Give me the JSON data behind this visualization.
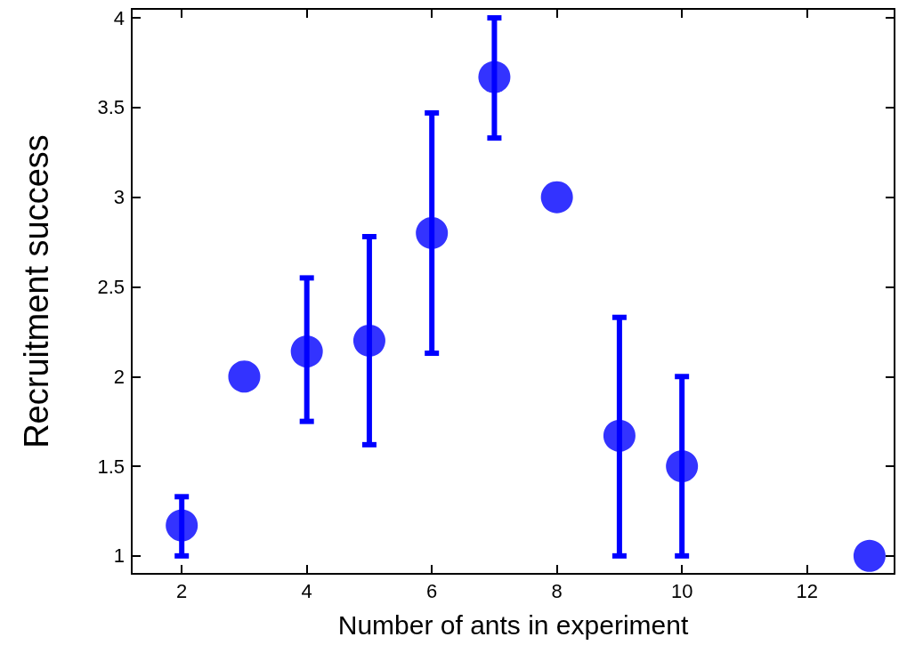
{
  "chart_data": {
    "type": "scatter",
    "xlabel": "Number of ants in experiment",
    "ylabel": "Recruitment success",
    "x": [
      2,
      3,
      4,
      5,
      6,
      7,
      8,
      9,
      10,
      13
    ],
    "values": [
      1.17,
      2.0,
      2.14,
      2.2,
      2.8,
      3.67,
      3.0,
      1.67,
      1.5,
      1.0
    ],
    "errors": [
      [
        1.0,
        1.33
      ],
      null,
      [
        1.75,
        2.55
      ],
      [
        1.62,
        2.78
      ],
      [
        2.13,
        3.47
      ],
      [
        3.33,
        4.0
      ],
      null,
      [
        1.0,
        2.33
      ],
      [
        1.0,
        2.0
      ],
      null
    ],
    "color": "#0000ff",
    "marker": "circle",
    "grid": false,
    "xlim": [
      1.2,
      13.4
    ],
    "xticks": [
      2,
      4,
      6,
      8,
      10,
      12
    ],
    "ylim": [
      0.9,
      4.05
    ],
    "yticks": [
      1,
      1.5,
      2,
      2.5,
      3,
      3.5,
      4
    ]
  }
}
